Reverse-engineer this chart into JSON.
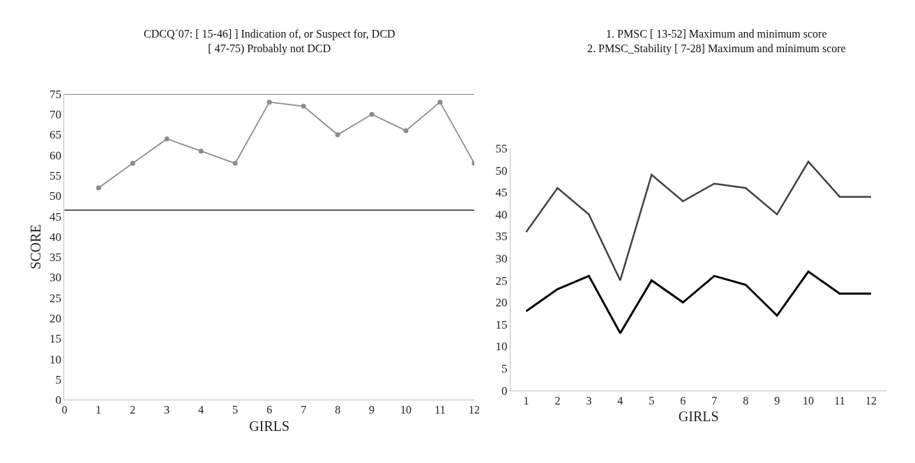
{
  "chart_data": [
    {
      "type": "line",
      "title": "CDCQ´07: [ 15-46] ] Indication of, or Suspect for, DCD\n[ 47-75) Probably not DCD",
      "xlabel": "GIRLS",
      "ylabel": "SCORE",
      "x": [
        1,
        2,
        3,
        4,
        5,
        6,
        7,
        8,
        9,
        10,
        11,
        12
      ],
      "series": [
        {
          "color": "#8c8c8c",
          "values": [
            52,
            58,
            64,
            61,
            58,
            73,
            72,
            65,
            70,
            66,
            73,
            58
          ]
        }
      ],
      "xlim": [
        0,
        12
      ],
      "xticks": [
        0,
        1,
        2,
        3,
        4,
        5,
        6,
        7,
        8,
        9,
        10,
        11,
        12
      ],
      "ylim": [
        0,
        75
      ],
      "yticks": [
        0,
        5,
        10,
        15,
        20,
        25,
        30,
        35,
        40,
        45,
        50,
        55,
        60,
        65,
        70,
        75
      ],
      "ref_lines": [
        {
          "axis": "y",
          "value": 75,
          "color": "#000000"
        },
        {
          "axis": "y",
          "value": 46.5,
          "color": "#000000"
        }
      ],
      "marker": "circle"
    },
    {
      "type": "line",
      "title": "1. PMSC [ 13-52] Maximum and minimum score\n2. PMSC_Stability [ 7-28] Maximum and mínimum score",
      "xlabel": "GIRLS",
      "x": [
        1,
        2,
        3,
        4,
        5,
        6,
        7,
        8,
        9,
        10,
        11,
        12
      ],
      "xlim": [
        0.5,
        12.5
      ],
      "xticks": [
        1,
        2,
        3,
        4,
        5,
        6,
        7,
        8,
        9,
        10,
        11,
        12
      ],
      "series": [
        {
          "color": "#404040",
          "values": [
            36,
            46,
            40,
            25,
            49,
            43,
            47,
            46,
            40,
            52,
            44,
            44
          ]
        },
        {
          "color": "#000000",
          "values": [
            18,
            23,
            26,
            13,
            25,
            20,
            26,
            24,
            17,
            27,
            22,
            22
          ]
        }
      ],
      "ylim": [
        0,
        55
      ],
      "yticks": [
        0,
        5,
        10,
        15,
        20,
        25,
        30,
        35,
        40,
        45,
        50,
        55
      ],
      "marker": "none"
    }
  ]
}
